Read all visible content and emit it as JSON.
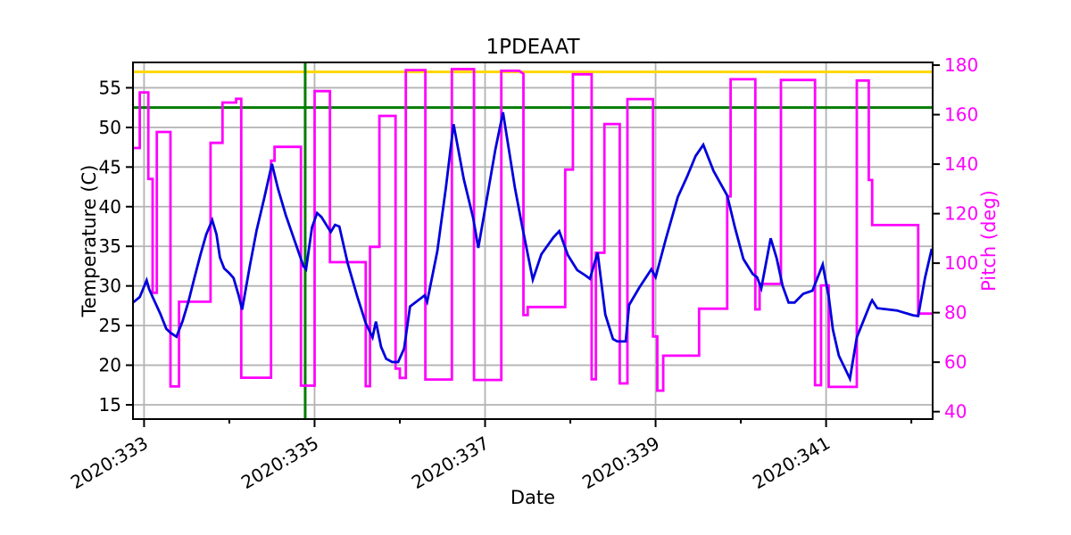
{
  "figure": {
    "title": "1PDEAAT",
    "xlabel": "Date",
    "ylabel_left": "Temperature (C)",
    "ylabel_right": "Pitch (deg)"
  },
  "chart_data": {
    "type": "line",
    "title": "1PDEAAT",
    "xlabel": "Date",
    "ylabel_left": "Temperature (C)",
    "ylabel_right": "Pitch (deg)",
    "x_axis": {
      "lim": [
        332.87,
        342.25
      ],
      "major_ticks": [
        333,
        335,
        337,
        339,
        341
      ],
      "major_tick_labels": [
        "2020:333",
        "2020:335",
        "2020:337",
        "2020:339",
        "2020:341"
      ],
      "minor_ticks": [
        334,
        336,
        338,
        340,
        342
      ],
      "label_rotation_deg": 30
    },
    "y_axis_left": {
      "lim": [
        13.2,
        58.2
      ],
      "ticks": [
        15,
        20,
        25,
        30,
        35,
        40,
        45,
        50,
        55
      ],
      "tick_labels": [
        "15",
        "20",
        "25",
        "30",
        "35",
        "40",
        "45",
        "50",
        "55"
      ],
      "color": "#000000"
    },
    "y_axis_right": {
      "lim": [
        37.0,
        181.1
      ],
      "ticks": [
        40,
        60,
        80,
        100,
        120,
        140,
        160,
        180
      ],
      "tick_labels": [
        "40",
        "60",
        "80",
        "100",
        "120",
        "140",
        "160",
        "180"
      ],
      "color": "#ff00ff"
    },
    "grid": {
      "show": true,
      "color": "#b3b3b3",
      "line_width": 1.8
    },
    "frame_color": "#000000",
    "reference_lines": [
      {
        "name": "yellow-limit-line",
        "orientation": "horizontal",
        "axis": "left",
        "value": 57.0,
        "color": "#ffd700",
        "line_width": 3
      },
      {
        "name": "green-limit-line",
        "orientation": "horizontal",
        "axis": "left",
        "value": 52.5,
        "color": "#007d00",
        "line_width": 3
      },
      {
        "name": "green-time-marker-line",
        "orientation": "vertical",
        "axis": "x",
        "value": 334.89,
        "color": "#007d00",
        "line_width": 3
      }
    ],
    "series": [
      {
        "name": "pitch",
        "axis": "right",
        "color": "#ff00ff",
        "line_width": 2.8,
        "points": [
          [
            332.87,
            146.5
          ],
          [
            332.95,
            146.5
          ],
          [
            332.95,
            169
          ],
          [
            333.05,
            169
          ],
          [
            333.05,
            134
          ],
          [
            333.1,
            134
          ],
          [
            333.1,
            88
          ],
          [
            333.15,
            88
          ],
          [
            333.15,
            153
          ],
          [
            333.31,
            153
          ],
          [
            333.31,
            50.2
          ],
          [
            333.41,
            50.2
          ],
          [
            333.41,
            84.4
          ],
          [
            333.78,
            84.4
          ],
          [
            333.78,
            148.6
          ],
          [
            333.92,
            148.6
          ],
          [
            333.92,
            164.9
          ],
          [
            334.08,
            164.9
          ],
          [
            334.08,
            166.4
          ],
          [
            334.14,
            166.4
          ],
          [
            334.14,
            53.7
          ],
          [
            334.49,
            53.7
          ],
          [
            334.49,
            141.4
          ],
          [
            334.53,
            141.4
          ],
          [
            334.53,
            147
          ],
          [
            334.84,
            147
          ],
          [
            334.84,
            50.5
          ],
          [
            335,
            50.5
          ],
          [
            335,
            169.5
          ],
          [
            335.18,
            169.5
          ],
          [
            335.18,
            100.4
          ],
          [
            335.6,
            100.4
          ],
          [
            335.6,
            50.3
          ],
          [
            335.65,
            50.3
          ],
          [
            335.65,
            106.6
          ],
          [
            335.76,
            106.6
          ],
          [
            335.76,
            159.5
          ],
          [
            335.95,
            159.5
          ],
          [
            335.95,
            57.4
          ],
          [
            336,
            57.4
          ],
          [
            336,
            53.6
          ],
          [
            336.07,
            53.6
          ],
          [
            336.07,
            178
          ],
          [
            336.3,
            178
          ],
          [
            336.3,
            53
          ],
          [
            336.61,
            53
          ],
          [
            336.61,
            178.4
          ],
          [
            336.87,
            178.4
          ],
          [
            336.87,
            52.8
          ],
          [
            337.19,
            52.8
          ],
          [
            337.19,
            177.7
          ],
          [
            337.4,
            177.7
          ],
          [
            337.45,
            176.5
          ],
          [
            337.45,
            79
          ],
          [
            337.5,
            79
          ],
          [
            337.5,
            82.3
          ],
          [
            337.94,
            82.3
          ],
          [
            337.94,
            137.8
          ],
          [
            338.03,
            137.8
          ],
          [
            338.03,
            176.3
          ],
          [
            338.25,
            176.3
          ],
          [
            338.25,
            53.1
          ],
          [
            338.3,
            53.1
          ],
          [
            338.3,
            104.2
          ],
          [
            338.4,
            104.2
          ],
          [
            338.4,
            156.2
          ],
          [
            338.58,
            156.2
          ],
          [
            338.58,
            51.4
          ],
          [
            338.67,
            51.4
          ],
          [
            338.67,
            166.3
          ],
          [
            338.97,
            166.3
          ],
          [
            338.97,
            70.4
          ],
          [
            339.02,
            70.4
          ],
          [
            339.02,
            48.5
          ],
          [
            339.09,
            48.5
          ],
          [
            339.09,
            62.6
          ],
          [
            339.51,
            62.6
          ],
          [
            339.51,
            81.6
          ],
          [
            339.84,
            81.6
          ],
          [
            339.84,
            127
          ],
          [
            339.88,
            127
          ],
          [
            339.88,
            174.3
          ],
          [
            340.17,
            174.3
          ],
          [
            340.17,
            81.3
          ],
          [
            340.22,
            81.3
          ],
          [
            340.22,
            91.6
          ],
          [
            340.47,
            91.6
          ],
          [
            340.47,
            174
          ],
          [
            340.87,
            174
          ],
          [
            340.87,
            50.7
          ],
          [
            340.94,
            50.7
          ],
          [
            340.94,
            91
          ],
          [
            341.03,
            91
          ],
          [
            341.03,
            50
          ],
          [
            341.36,
            50
          ],
          [
            341.36,
            173.8
          ],
          [
            341.5,
            173.8
          ],
          [
            341.5,
            133.6
          ],
          [
            341.54,
            133.6
          ],
          [
            341.54,
            115.4
          ],
          [
            342.08,
            115.4
          ],
          [
            342.08,
            79.6
          ],
          [
            342.25,
            79.6
          ]
        ]
      },
      {
        "name": "temperature",
        "axis": "left",
        "color": "#0000dd",
        "line_width": 2.8,
        "points": [
          [
            332.87,
            27.9
          ],
          [
            332.95,
            28.6
          ],
          [
            333.03,
            30.7
          ],
          [
            333.06,
            29.6
          ],
          [
            333.1,
            28.6
          ],
          [
            333.19,
            26.5
          ],
          [
            333.26,
            24.6
          ],
          [
            333.31,
            24.1
          ],
          [
            333.38,
            23.6
          ],
          [
            333.45,
            25.5
          ],
          [
            333.52,
            28
          ],
          [
            333.59,
            31
          ],
          [
            333.66,
            33.9
          ],
          [
            333.73,
            36.5
          ],
          [
            333.8,
            38.3
          ],
          [
            333.85,
            36.5
          ],
          [
            333.89,
            33.6
          ],
          [
            333.94,
            32.2
          ],
          [
            334,
            31.6
          ],
          [
            334.05,
            31
          ],
          [
            334.11,
            28.8
          ],
          [
            334.15,
            27
          ],
          [
            334.24,
            32.5
          ],
          [
            334.32,
            37
          ],
          [
            334.41,
            41.1
          ],
          [
            334.5,
            45.4
          ],
          [
            334.57,
            42.3
          ],
          [
            334.66,
            39
          ],
          [
            334.76,
            35.9
          ],
          [
            334.87,
            32.5
          ],
          [
            334.9,
            32.1
          ],
          [
            334.97,
            37.4
          ],
          [
            335.03,
            39.2
          ],
          [
            335.08,
            38.7
          ],
          [
            335.19,
            36.8
          ],
          [
            335.24,
            37.7
          ],
          [
            335.29,
            37.5
          ],
          [
            335.39,
            32.8
          ],
          [
            335.5,
            28.7
          ],
          [
            335.6,
            25.3
          ],
          [
            335.68,
            23.5
          ],
          [
            335.72,
            25.5
          ],
          [
            335.78,
            22.3
          ],
          [
            335.84,
            20.8
          ],
          [
            335.91,
            20.4
          ],
          [
            335.98,
            20.4
          ],
          [
            336.05,
            22.1
          ],
          [
            336.12,
            27.4
          ],
          [
            336.29,
            28.8
          ],
          [
            336.32,
            28
          ],
          [
            336.44,
            34.4
          ],
          [
            336.54,
            42.4
          ],
          [
            336.63,
            50.4
          ],
          [
            336.75,
            43.5
          ],
          [
            336.86,
            38.6
          ],
          [
            336.92,
            34.8
          ],
          [
            337.03,
            41.6
          ],
          [
            337.12,
            47.2
          ],
          [
            337.21,
            51.9
          ],
          [
            337.35,
            42.4
          ],
          [
            337.43,
            37.8
          ],
          [
            337.56,
            30.8
          ],
          [
            337.66,
            34
          ],
          [
            337.8,
            36.1
          ],
          [
            337.87,
            36.9
          ],
          [
            337.97,
            33.9
          ],
          [
            338.08,
            32
          ],
          [
            338.18,
            31.3
          ],
          [
            338.23,
            30.9
          ],
          [
            338.32,
            34.2
          ],
          [
            338.41,
            26.4
          ],
          [
            338.5,
            23.3
          ],
          [
            338.55,
            23
          ],
          [
            338.65,
            23
          ],
          [
            338.69,
            27.6
          ],
          [
            338.81,
            29.8
          ],
          [
            338.95,
            32.1
          ],
          [
            339,
            31.1
          ],
          [
            339.12,
            35.9
          ],
          [
            339.26,
            41.2
          ],
          [
            339.37,
            43.8
          ],
          [
            339.47,
            46.4
          ],
          [
            339.56,
            47.8
          ],
          [
            339.68,
            44.5
          ],
          [
            339.84,
            41.4
          ],
          [
            339.93,
            37.4
          ],
          [
            340.03,
            33.4
          ],
          [
            340.14,
            31.5
          ],
          [
            340.19,
            31.1
          ],
          [
            340.24,
            29.7
          ],
          [
            340.35,
            36
          ],
          [
            340.42,
            33.5
          ],
          [
            340.49,
            30
          ],
          [
            340.56,
            27.9
          ],
          [
            340.63,
            27.9
          ],
          [
            340.73,
            29
          ],
          [
            340.84,
            29.4
          ],
          [
            340.96,
            32.7
          ],
          [
            341.03,
            28.7
          ],
          [
            341.08,
            24.5
          ],
          [
            341.15,
            21.2
          ],
          [
            341.28,
            18.3
          ],
          [
            341.36,
            23.5
          ],
          [
            341.52,
            27.8
          ],
          [
            341.54,
            28.2
          ],
          [
            341.6,
            27.2
          ],
          [
            341.83,
            26.9
          ],
          [
            342.02,
            26.3
          ],
          [
            342.08,
            26.2
          ],
          [
            342.16,
            31
          ],
          [
            342.24,
            34.7
          ]
        ]
      }
    ]
  }
}
